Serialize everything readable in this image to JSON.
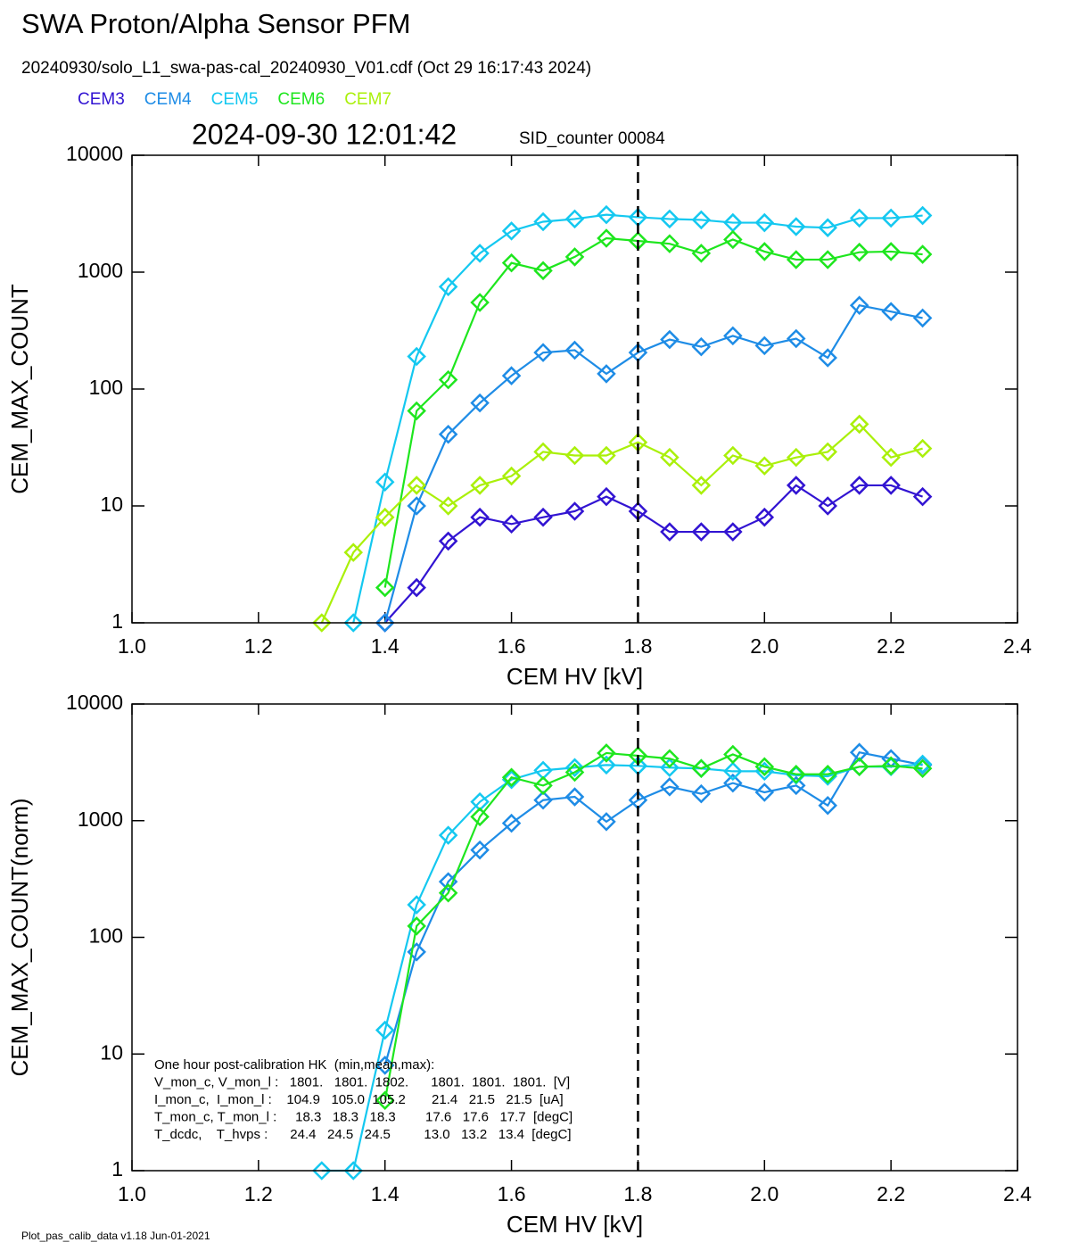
{
  "header": {
    "title": "SWA Proton/Alpha Sensor PFM",
    "file_info": "20240930/solo_L1_swa-pas-cal_20240930_V01.cdf  (Oct 29 16:17:43 2024)",
    "timestamp": "2024-09-30 12:01:42",
    "sid": "SID_counter 00084"
  },
  "footer": "Plot_pas_calib_data v1.18 Jun-01-2021",
  "chart_data": [
    {
      "type": "line",
      "yscale": "log",
      "legend": "above",
      "vline": 1.8,
      "xlabel": "CEM HV [kV]",
      "ylabel": "CEM_MAX_COUNT",
      "x": [
        1.3,
        1.35,
        1.4,
        1.45,
        1.5,
        1.55,
        1.6,
        1.65,
        1.7,
        1.75,
        1.8,
        1.85,
        1.9,
        1.95,
        2.0,
        2.05,
        2.1,
        2.15,
        2.2,
        2.25
      ],
      "xlim": [
        1.0,
        2.4
      ],
      "xticks": [
        {
          "value": 1.0,
          "label": "1.0"
        },
        1.2,
        1.4,
        1.6,
        1.8,
        {
          "value": 2.0,
          "label": "2.0"
        },
        2.2,
        2.4
      ],
      "ylim": [
        1,
        10000
      ],
      "yticks": [
        1,
        10,
        100,
        1000,
        10000
      ],
      "series": [
        {
          "name": "CEM3",
          "color": "#3214d2",
          "values": [
            null,
            null,
            1,
            2,
            5,
            8,
            7,
            8,
            9,
            12,
            9,
            6,
            6,
            6,
            8,
            15,
            10,
            15,
            15,
            12
          ]
        },
        {
          "name": "CEM4",
          "color": "#1e8ce6",
          "values": [
            null,
            null,
            1,
            10,
            41,
            76,
            130,
            205,
            215,
            135,
            205,
            265,
            230,
            285,
            235,
            270,
            185,
            520,
            460,
            405
          ]
        },
        {
          "name": "CEM5",
          "color": "#14c8f0",
          "values": [
            null,
            1,
            16,
            190,
            750,
            1450,
            2250,
            2700,
            2850,
            3100,
            2950,
            2850,
            2800,
            2650,
            2650,
            2450,
            2400,
            2900,
            2900,
            3050
          ]
        },
        {
          "name": "CEM6",
          "color": "#1ee61e",
          "values": [
            null,
            null,
            2,
            65,
            120,
            550,
            1200,
            1030,
            1350,
            1950,
            1850,
            1750,
            1450,
            1900,
            1500,
            1280,
            1280,
            1480,
            1500,
            1420
          ]
        },
        {
          "name": "CEM7",
          "color": "#aaf00a",
          "values": [
            1,
            4,
            8,
            15,
            10,
            15,
            18,
            29,
            27,
            27,
            35,
            26,
            15,
            27,
            22,
            26,
            29,
            50,
            26,
            31
          ]
        }
      ]
    },
    {
      "type": "line",
      "yscale": "log",
      "vline": 1.8,
      "xlabel": "CEM HV [kV]",
      "ylabel": "CEM_MAX_COUNT(norm)",
      "x": [
        1.3,
        1.35,
        1.4,
        1.45,
        1.5,
        1.55,
        1.6,
        1.65,
        1.7,
        1.75,
        1.8,
        1.85,
        1.9,
        1.95,
        2.0,
        2.05,
        2.1,
        2.15,
        2.2,
        2.25
      ],
      "xlim": [
        1.0,
        2.4
      ],
      "xticks": [
        {
          "value": 1.0,
          "label": "1.0"
        },
        1.2,
        1.4,
        1.6,
        1.8,
        {
          "value": 2.0,
          "label": "2.0"
        },
        2.2,
        2.4
      ],
      "ylim": [
        1,
        10000
      ],
      "yticks": [
        1,
        10,
        100,
        1000,
        10000
      ],
      "series": [
        {
          "color": "#1e8ce6",
          "values": [
            null,
            null,
            8,
            75,
            300,
            560,
            950,
            1500,
            1600,
            980,
            1500,
            1950,
            1700,
            2100,
            1750,
            2000,
            1350,
            3850,
            3400,
            3000
          ]
        },
        {
          "color": "#14c8f0",
          "values": [
            1,
            1,
            16,
            190,
            750,
            1450,
            2250,
            2700,
            2850,
            3000,
            2950,
            2850,
            2800,
            2650,
            2650,
            2450,
            2400,
            2900,
            2900,
            3050
          ]
        },
        {
          "color": "#1ee61e",
          "values": [
            null,
            null,
            4,
            125,
            240,
            1080,
            2350,
            2000,
            2600,
            3800,
            3600,
            3400,
            2800,
            3700,
            2900,
            2500,
            2500,
            2900,
            2950,
            2800
          ]
        }
      ],
      "annotations": [
        "One hour post-calibration HK  (min,mean,max):",
        "V_mon_c, V_mon_l :   1801.   1801.  1802.      1801.  1801.  1801.  [V]",
        "I_mon_c,  I_mon_l :    104.9   105.0  105.2       21.4   21.5   21.5  [uA]",
        "T_mon_c, T_mon_l :     18.3   18.3   18.3        17.6   17.6   17.7  [degC]",
        "T_dcdc,    T_hvps :      24.4   24.5   24.5         13.0   13.2   13.4  [degC]"
      ]
    }
  ]
}
